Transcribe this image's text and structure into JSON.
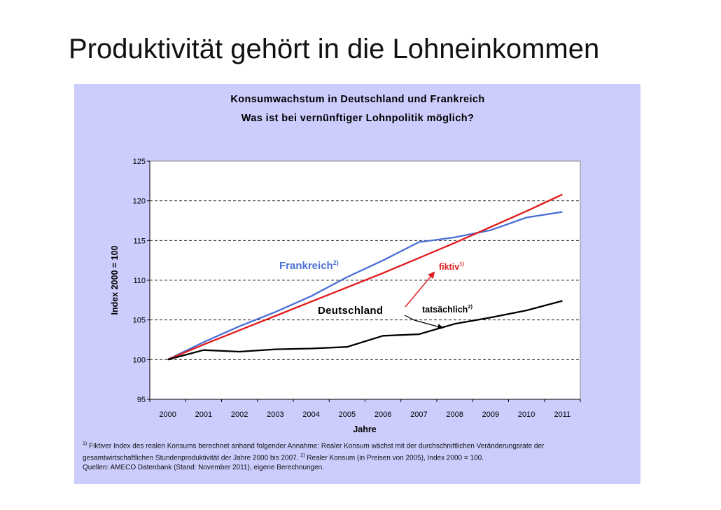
{
  "slide": {
    "title": "Produktivität gehört in die Lohneinkommen"
  },
  "chart_data": {
    "type": "line",
    "title": "Konsumwachstum in Deutschland und Frankreich",
    "subtitle": "Was ist bei vernünftiger Lohnpolitik möglich?",
    "xlabel": "Jahre",
    "ylabel": "Index 2000 = 100",
    "ylim": [
      95,
      125
    ],
    "yticks": [
      95,
      100,
      105,
      110,
      115,
      120,
      125
    ],
    "grid": "dashed horizontal",
    "x": [
      2000,
      2001,
      2002,
      2003,
      2004,
      2005,
      2006,
      2007,
      2008,
      2009,
      2010,
      2011
    ],
    "series": [
      {
        "name": "Frankreich",
        "sup": "2)",
        "color": "#4a6fd6",
        "values": [
          100,
          102.2,
          104.2,
          106,
          108,
          110.4,
          112.5,
          114.8,
          115.4,
          116.3,
          117.9,
          118.6
        ]
      },
      {
        "name": "fiktiv",
        "sup": "1)",
        "color": "#e01a1a",
        "values": [
          100,
          101.9,
          103.7,
          105.5,
          107.3,
          109.1,
          110.9,
          112.8,
          114.7,
          116.7,
          118.7,
          120.8
        ]
      },
      {
        "name": "tatsächlich",
        "sup": "2)",
        "color": "#000000",
        "values": [
          100,
          101.2,
          101,
          101.3,
          101.4,
          101.6,
          103,
          103.2,
          104.5,
          105.3,
          106.2,
          107.4
        ]
      }
    ],
    "annotations": {
      "deutschland": "Deutschland"
    }
  },
  "footnotes": {
    "fn1_mark": "1)",
    "fn1_text": "Fiktiver Index des realen Konsums berechnet anhand folgender Annahme: Realer Konsum wächst mit der durchschnittlichen Veränderungsrate der",
    "fn1_cont": "gesamtwirtschaftlichen Stundenproduktivität der Jahre 2000 bis 2007.",
    "fn2_mark": "2)",
    "fn2_text": "Realer Konsum (in Preisen von 2005), Index 2000 = 100.",
    "sources": "Quellen: AMECO Datenbank (Stand: November 2011), eigene Berechnungen."
  }
}
